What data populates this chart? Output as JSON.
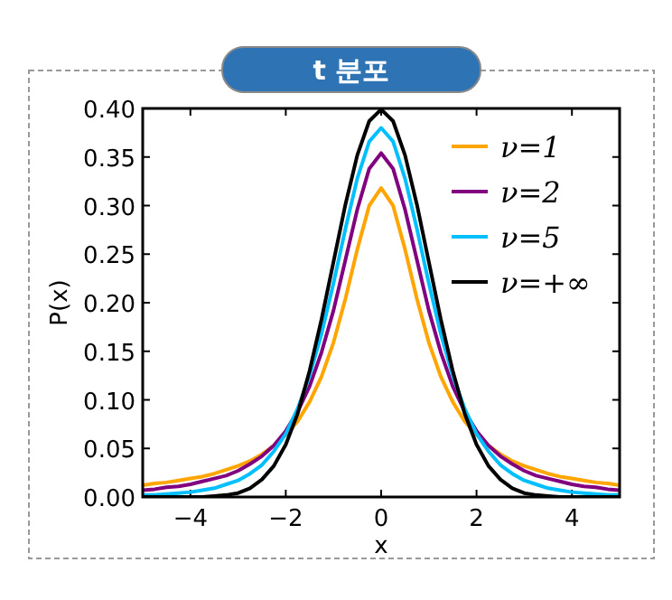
{
  "chart_data": {
    "type": "line",
    "title": "t 분포",
    "xlabel": "x",
    "ylabel": "P(x)",
    "x": [
      -5,
      -4.75,
      -4.5,
      -4.25,
      -4,
      -3.75,
      -3.5,
      -3.25,
      -3,
      -2.75,
      -2.5,
      -2.25,
      -2,
      -1.75,
      -1.5,
      -1.25,
      -1,
      -0.75,
      -0.5,
      -0.25,
      0,
      0.25,
      0.5,
      0.75,
      1,
      1.25,
      1.5,
      1.75,
      2,
      2.25,
      2.5,
      2.75,
      3,
      3.25,
      3.5,
      3.75,
      4,
      4.25,
      4.5,
      4.75,
      5
    ],
    "series": [
      {
        "name": "ν=1",
        "color": "#ffa500",
        "values": [
          0.012,
          0.014,
          0.015,
          0.017,
          0.019,
          0.021,
          0.024,
          0.028,
          0.032,
          0.037,
          0.044,
          0.053,
          0.064,
          0.078,
          0.098,
          0.124,
          0.159,
          0.204,
          0.255,
          0.3,
          0.318,
          0.3,
          0.255,
          0.204,
          0.159,
          0.124,
          0.098,
          0.078,
          0.064,
          0.053,
          0.044,
          0.037,
          0.032,
          0.028,
          0.024,
          0.021,
          0.019,
          0.017,
          0.015,
          0.014,
          0.012
        ]
      },
      {
        "name": "ν=2",
        "color": "#800080",
        "values": [
          0.007,
          0.008,
          0.01,
          0.011,
          0.013,
          0.016,
          0.019,
          0.022,
          0.027,
          0.034,
          0.042,
          0.053,
          0.068,
          0.088,
          0.114,
          0.149,
          0.192,
          0.244,
          0.296,
          0.338,
          0.354,
          0.338,
          0.296,
          0.244,
          0.192,
          0.149,
          0.114,
          0.088,
          0.068,
          0.053,
          0.042,
          0.034,
          0.027,
          0.022,
          0.019,
          0.016,
          0.013,
          0.011,
          0.01,
          0.008,
          0.007
        ]
      },
      {
        "name": "ν=5",
        "color": "#00bfff",
        "values": [
          0.002,
          0.002,
          0.003,
          0.004,
          0.005,
          0.007,
          0.009,
          0.013,
          0.017,
          0.024,
          0.033,
          0.047,
          0.065,
          0.091,
          0.125,
          0.168,
          0.22,
          0.276,
          0.328,
          0.366,
          0.38,
          0.366,
          0.328,
          0.276,
          0.22,
          0.168,
          0.125,
          0.091,
          0.065,
          0.047,
          0.033,
          0.024,
          0.017,
          0.013,
          0.009,
          0.007,
          0.005,
          0.004,
          0.003,
          0.002,
          0.002
        ]
      },
      {
        "name": "ν=+∞",
        "color": "#000000",
        "values": [
          0,
          0,
          0,
          0,
          0,
          0,
          0.001,
          0.002,
          0.004,
          0.009,
          0.018,
          0.032,
          0.054,
          0.086,
          0.13,
          0.183,
          0.242,
          0.301,
          0.352,
          0.387,
          0.399,
          0.387,
          0.352,
          0.301,
          0.242,
          0.183,
          0.13,
          0.086,
          0.054,
          0.032,
          0.018,
          0.009,
          0.004,
          0.002,
          0.001,
          0,
          0,
          0,
          0,
          0,
          0
        ]
      }
    ],
    "xlim": [
      -5,
      5
    ],
    "xticks": [
      {
        "value": -4,
        "label": "−4"
      },
      {
        "value": -2,
        "label": "−2"
      },
      0,
      2,
      4
    ],
    "ylim": [
      0,
      0.4
    ],
    "yticks": [
      {
        "value": 0,
        "label": "0.00"
      },
      0.05,
      {
        "value": 0.1,
        "label": "0.10"
      },
      0.15,
      {
        "value": 0.2,
        "label": "0.20"
      },
      0.25,
      {
        "value": 0.3,
        "label": "0.30"
      },
      0.35,
      {
        "value": 0.4,
        "label": "0.40"
      }
    ],
    "grid": false,
    "legend": "top right",
    "line_style": "solid"
  }
}
